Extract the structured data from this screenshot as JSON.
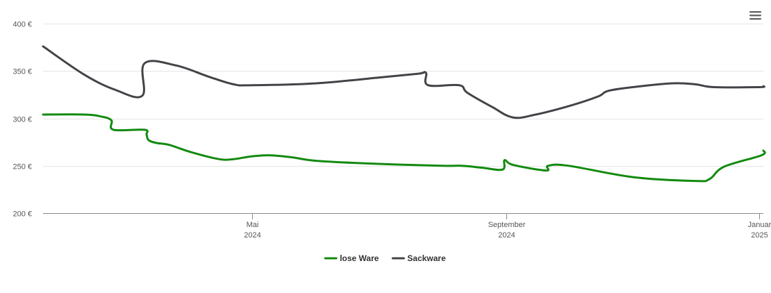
{
  "menu": {
    "icon": "hamburger-menu-icon"
  },
  "chart_data": {
    "type": "line",
    "title": "",
    "xlabel": "",
    "ylabel": "",
    "ylim": [
      200,
      400
    ],
    "yticks": [
      200,
      250,
      300,
      350,
      400
    ],
    "ytick_labels": [
      "200 €",
      "250 €",
      "300 €",
      "350 €",
      "400 €"
    ],
    "xlim": [
      "2024-01-21",
      "2025-01-03"
    ],
    "xticks": [
      {
        "date": "2024-05-01",
        "label1": "Mai",
        "label2": "2024"
      },
      {
        "date": "2024-09-01",
        "label1": "September",
        "label2": "2024"
      },
      {
        "date": "2025-01-01",
        "label1": "Januar",
        "label2": "2025"
      }
    ],
    "grid": true,
    "legend_position": "bottom-center",
    "series": [
      {
        "name": "lose Ware",
        "color": "#128a0f",
        "points": [
          [
            "2024-01-21",
            304
          ],
          [
            "2024-02-10",
            304
          ],
          [
            "2024-02-18",
            302
          ],
          [
            "2024-02-23",
            298
          ],
          [
            "2024-02-24",
            288
          ],
          [
            "2024-03-10",
            288
          ],
          [
            "2024-03-11",
            283
          ],
          [
            "2024-03-12",
            277
          ],
          [
            "2024-03-16",
            274
          ],
          [
            "2024-03-22",
            272
          ],
          [
            "2024-04-02",
            264
          ],
          [
            "2024-04-15",
            257
          ],
          [
            "2024-04-22",
            257
          ],
          [
            "2024-05-01",
            260
          ],
          [
            "2024-05-10",
            261
          ],
          [
            "2024-05-20",
            259
          ],
          [
            "2024-06-02",
            255
          ],
          [
            "2024-07-01",
            252
          ],
          [
            "2024-08-01",
            250
          ],
          [
            "2024-08-10",
            250
          ],
          [
            "2024-08-20",
            248
          ],
          [
            "2024-08-30",
            246
          ],
          [
            "2024-08-31",
            256
          ],
          [
            "2024-09-04",
            251
          ],
          [
            "2024-09-20",
            245
          ],
          [
            "2024-09-21",
            250
          ],
          [
            "2024-10-01",
            250
          ],
          [
            "2024-11-01",
            238
          ],
          [
            "2024-12-01",
            234
          ],
          [
            "2024-12-08",
            236
          ],
          [
            "2024-12-15",
            249
          ],
          [
            "2025-01-02",
            261
          ],
          [
            "2025-01-03",
            266
          ]
        ]
      },
      {
        "name": "Sackware",
        "color": "#434348",
        "points": [
          [
            "2024-01-21",
            376
          ],
          [
            "2024-02-10",
            346
          ],
          [
            "2024-02-25",
            330
          ],
          [
            "2024-03-09",
            324
          ],
          [
            "2024-03-10",
            358
          ],
          [
            "2024-03-25",
            356
          ],
          [
            "2024-04-10",
            344
          ],
          [
            "2024-04-22",
            336
          ],
          [
            "2024-05-01",
            335
          ],
          [
            "2024-06-01",
            337
          ],
          [
            "2024-07-01",
            343
          ],
          [
            "2024-07-20",
            347
          ],
          [
            "2024-07-24",
            348
          ],
          [
            "2024-07-25",
            335
          ],
          [
            "2024-08-09",
            335
          ],
          [
            "2024-08-13",
            327
          ],
          [
            "2024-08-25",
            312
          ],
          [
            "2024-09-04",
            301
          ],
          [
            "2024-09-15",
            304
          ],
          [
            "2024-10-01",
            313
          ],
          [
            "2024-10-15",
            323
          ],
          [
            "2024-10-20",
            329
          ],
          [
            "2024-11-01",
            333
          ],
          [
            "2024-11-20",
            337
          ],
          [
            "2024-12-01",
            336
          ],
          [
            "2024-12-10",
            333
          ],
          [
            "2025-01-01",
            333
          ],
          [
            "2025-01-03",
            334
          ]
        ]
      }
    ]
  }
}
